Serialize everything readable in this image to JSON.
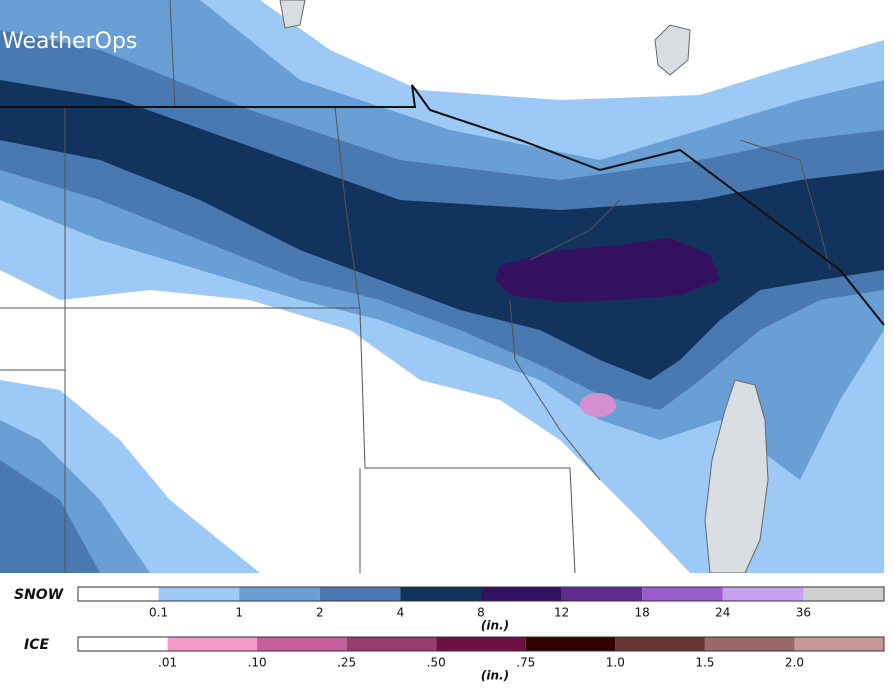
{
  "logo": "WeatherOps",
  "legend": {
    "snow": {
      "label": "SNOW",
      "unit": "(in.)",
      "colors": [
        "#ffffff",
        "#9cc9f5",
        "#6a9fd6",
        "#4a78b0",
        "#12335e",
        "#341060",
        "#5e2c8c",
        "#9a5dcc",
        "#c8a0f0",
        "#cfcfcf"
      ],
      "ticks": [
        "0.1",
        "1",
        "2",
        "4",
        "8",
        "12",
        "18",
        "24",
        "36"
      ]
    },
    "ice": {
      "label": "ICE",
      "unit": "(in.)",
      "colors": [
        "#ffffff",
        "#f49ac8",
        "#c55f9c",
        "#953e70",
        "#6b1040",
        "#300000",
        "#6a3535",
        "#9a6868",
        "#c89898"
      ],
      "ticks": [
        ".01",
        ".10",
        ".25",
        ".50",
        ".75",
        "1.0",
        "1.5",
        "2.0"
      ]
    }
  }
}
